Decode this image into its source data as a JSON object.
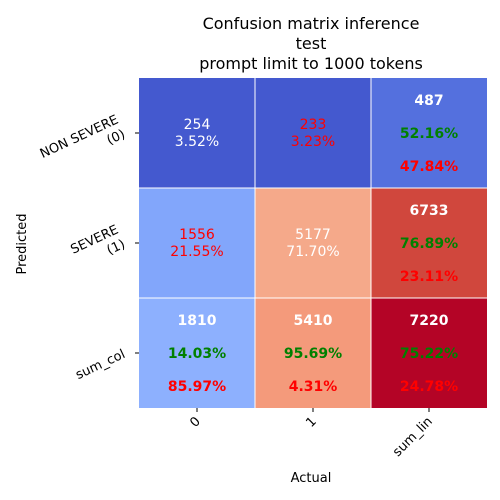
{
  "chart_data": {
    "type": "heatmap",
    "title": [
      "Confusion matrix inference",
      "test",
      "prompt limit to 1000 tokens"
    ],
    "xlabel": "Actual",
    "ylabel": "Predicted",
    "x_ticks": [
      "0",
      "1",
      "sum_lin"
    ],
    "y_ticks": [
      [
        "NON SEVERE",
        "(0)"
      ],
      [
        "SEVERE",
        "(1)"
      ],
      [
        "sum_col"
      ]
    ],
    "colormap": "coolwarm",
    "cells": [
      [
        {
          "lines": [
            "254",
            "3.52%"
          ],
          "colors": [
            "#ffffff",
            "#ffffff"
          ],
          "bold": false,
          "bg": "#4459cf"
        },
        {
          "lines": [
            "233",
            "3.23%"
          ],
          "colors": [
            "#ff0000",
            "#ff0000"
          ],
          "bold": false,
          "bg": "#4459cf"
        },
        {
          "lines": [
            "487",
            "52.16%",
            "47.84%"
          ],
          "colors": [
            "#ffffff",
            "#008000",
            "#ff0000"
          ],
          "bold": true,
          "bg": "#5470de"
        }
      ],
      [
        {
          "lines": [
            "1556",
            "21.55%"
          ],
          "colors": [
            "#ff0000",
            "#ff0000"
          ],
          "bold": false,
          "bg": "#82a6fb"
        },
        {
          "lines": [
            "5177",
            "71.70%"
          ],
          "colors": [
            "#ffffff",
            "#ffffff"
          ],
          "bold": false,
          "bg": "#f5a98a"
        },
        {
          "lines": [
            "6733",
            "76.89%",
            "23.11%"
          ],
          "colors": [
            "#ffffff",
            "#008000",
            "#ff0000"
          ],
          "bold": true,
          "bg": "#d0473d"
        }
      ],
      [
        {
          "lines": [
            "1810",
            "14.03%",
            "85.97%"
          ],
          "colors": [
            "#ffffff",
            "#008000",
            "#ff0000"
          ],
          "bold": true,
          "bg": "#8db0fe"
        },
        {
          "lines": [
            "5410",
            "95.69%",
            "4.31%"
          ],
          "colors": [
            "#ffffff",
            "#008000",
            "#ff0000"
          ],
          "bold": true,
          "bg": "#f49a7b"
        },
        {
          "lines": [
            "7220",
            "75.22%",
            "24.78%"
          ],
          "colors": [
            "#ffffff",
            "#008000",
            "#ff0000"
          ],
          "bold": true,
          "bg": "#b40426"
        }
      ]
    ]
  }
}
